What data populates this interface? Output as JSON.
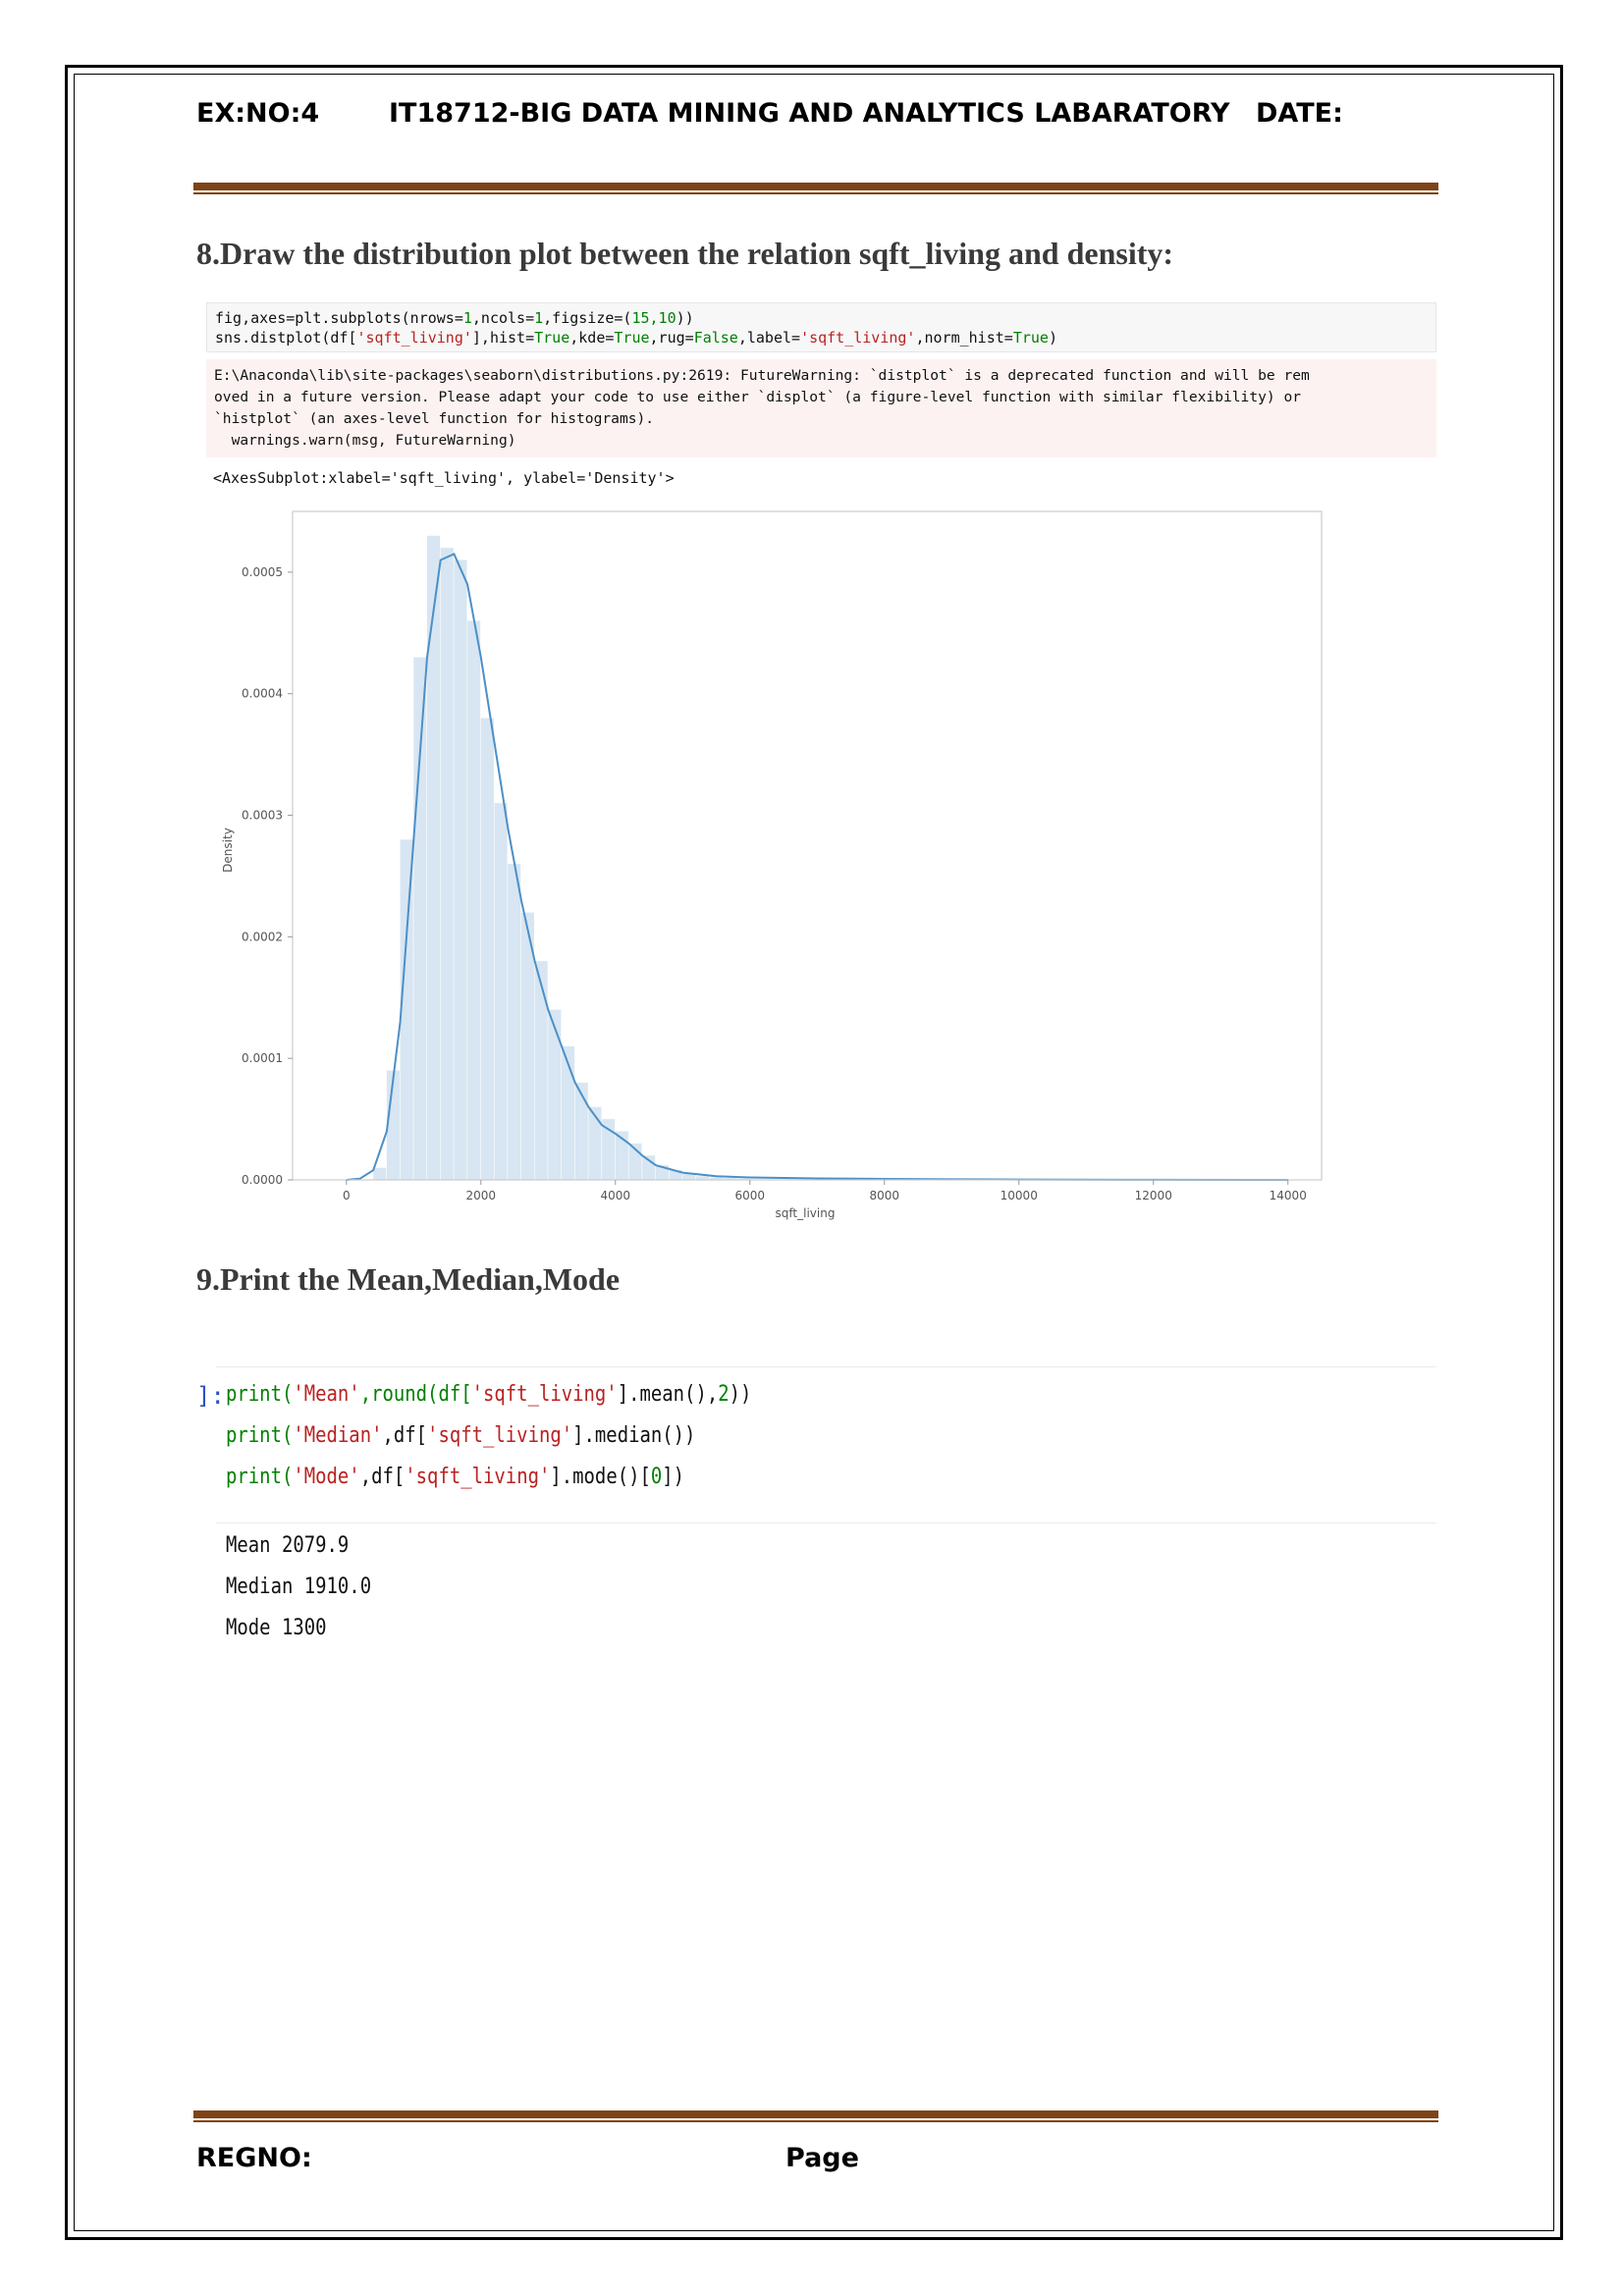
{
  "header": {
    "exno": "EX:NO:4",
    "course": "IT18712-BIG DATA MINING AND ANALYTICS LABARATORY",
    "date": "DATE:"
  },
  "section8": {
    "title": "8.Draw the  distribution plot between the relation sqft_living and density:",
    "code": {
      "line1": {
        "p1": "fig,axes=plt.subplots(nrows=",
        "n1": "1",
        "p2": ",ncols=",
        "n2": "1",
        "p3": ",figsize=(",
        "n3": "15,10",
        "p4": "))"
      },
      "line2": {
        "p1": "sns.distplot(df[",
        "s1": "'sqft_living'",
        "p2": "],hist=",
        "k1": "True",
        "p3": ",kde=",
        "k2": "True",
        "p4": ",rug=",
        "k3": "False",
        "p5": ",label=",
        "s2": "'sqft_living'",
        "p6": ",norm_hist=",
        "k4": "True",
        "p7": ")"
      }
    },
    "warning": [
      "E:\\Anaconda\\lib\\site-packages\\seaborn\\distributions.py:2619: FutureWarning: `distplot` is a deprecated function and will be rem",
      "oved in a future version. Please adapt your code to use either `displot` (a figure-level function with similar flexibility) or",
      "`histplot` (an axes-level function for histograms).",
      "  warnings.warn(msg, FutureWarning)"
    ],
    "output": "<AxesSubplot:xlabel='sqft_living', ylabel='Density'>"
  },
  "chart_data": {
    "type": "histogram-kde",
    "title": "",
    "xlabel": "sqft_living",
    "ylabel": "Density",
    "xlim": [
      -800,
      14500
    ],
    "ylim": [
      0,
      0.00055
    ],
    "x_ticks": [
      0,
      2000,
      4000,
      6000,
      8000,
      10000,
      12000,
      14000
    ],
    "y_ticks": [
      0.0,
      0.0001,
      0.0002,
      0.0003,
      0.0004,
      0.0005
    ],
    "y_tick_labels": [
      "0.0000",
      "0.0001",
      "0.0002",
      "0.0003",
      "0.0004",
      "0.0005"
    ],
    "bin_width": 200,
    "bins": [
      [
        400,
        1e-05
      ],
      [
        600,
        9e-05
      ],
      [
        800,
        0.00028
      ],
      [
        1000,
        0.00043
      ],
      [
        1200,
        0.00053
      ],
      [
        1400,
        0.00052
      ],
      [
        1600,
        0.00051
      ],
      [
        1800,
        0.00046
      ],
      [
        2000,
        0.00038
      ],
      [
        2200,
        0.00031
      ],
      [
        2400,
        0.00026
      ],
      [
        2600,
        0.00022
      ],
      [
        2800,
        0.00018
      ],
      [
        3000,
        0.00014
      ],
      [
        3200,
        0.00011
      ],
      [
        3400,
        8e-05
      ],
      [
        3600,
        6e-05
      ],
      [
        3800,
        5e-05
      ],
      [
        4000,
        4e-05
      ],
      [
        4200,
        3e-05
      ],
      [
        4400,
        2e-05
      ],
      [
        4600,
        1.2e-05
      ],
      [
        4800,
        8e-06
      ],
      [
        5000,
        5e-06
      ],
      [
        5200,
        3e-06
      ],
      [
        5400,
        2e-06
      ],
      [
        5600,
        1.5e-06
      ],
      [
        5800,
        1e-06
      ]
    ],
    "kde": [
      [
        0,
        0.0
      ],
      [
        200,
        1e-06
      ],
      [
        400,
        8e-06
      ],
      [
        600,
        4e-05
      ],
      [
        800,
        0.00013
      ],
      [
        1000,
        0.00028
      ],
      [
        1200,
        0.00043
      ],
      [
        1400,
        0.00051
      ],
      [
        1600,
        0.000515
      ],
      [
        1800,
        0.00049
      ],
      [
        2000,
        0.00043
      ],
      [
        2200,
        0.00036
      ],
      [
        2400,
        0.00029
      ],
      [
        2600,
        0.00023
      ],
      [
        2800,
        0.00018
      ],
      [
        3000,
        0.00014
      ],
      [
        3200,
        0.00011
      ],
      [
        3400,
        8e-05
      ],
      [
        3600,
        6e-05
      ],
      [
        3800,
        4.5e-05
      ],
      [
        4000,
        3.8e-05
      ],
      [
        4200,
        3e-05
      ],
      [
        4400,
        2e-05
      ],
      [
        4600,
        1.2e-05
      ],
      [
        5000,
        6e-06
      ],
      [
        5500,
        3e-06
      ],
      [
        6000,
        2e-06
      ],
      [
        7000,
        1.2e-06
      ],
      [
        8000,
        8e-07
      ],
      [
        9000,
        5e-07
      ],
      [
        10000,
        3e-07
      ],
      [
        12000,
        1e-07
      ],
      [
        14000,
        0.0
      ]
    ],
    "color": "#4c8fc6",
    "bar_color": "#d7e6f2",
    "grid": false
  },
  "section9": {
    "title": "9.Print the Mean,Median,Mode",
    "prompt": "]:",
    "code": {
      "line1": {
        "f": "print(",
        "s": "'Mean'",
        "r1": ",round(df[",
        "s2": "'sqft_living'",
        "r2": "].mean(),",
        "n": "2",
        "r3": "))"
      },
      "line2": {
        "f": "print(",
        "s": "'Median'",
        "r1": ",df[",
        "s2": "'sqft_living'",
        "r2": "].median())"
      },
      "line3": {
        "f": "print(",
        "s": "'Mode'",
        "r1": ",df[",
        "s2": "'sqft_living'",
        "r2": "].mode()[",
        "n": "0",
        "r3": "])"
      }
    },
    "output": [
      "Mean 2079.9",
      "Median 1910.0",
      "Mode 1300"
    ]
  },
  "footer": {
    "regno": "REGNO:",
    "page": "Page"
  }
}
